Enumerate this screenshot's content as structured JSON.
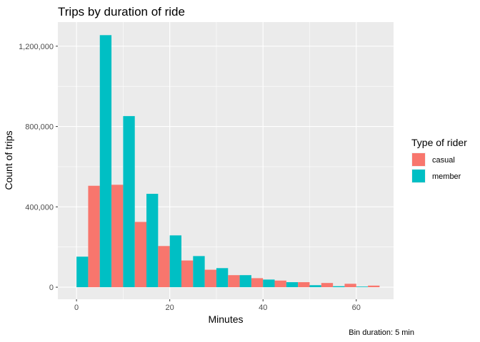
{
  "chart_data": {
    "type": "bar",
    "title": "Trips by duration of ride",
    "xlabel": "Minutes",
    "ylabel": "Count of trips",
    "caption": "Bin duration: 5 min",
    "legend_title": "Type of rider",
    "legend_position": "right",
    "grid": true,
    "xlim": [
      -4,
      68
    ],
    "ylim": [
      -60000,
      1320000
    ],
    "x_ticks": [
      0,
      20,
      40,
      60
    ],
    "x_tick_labels": [
      "0",
      "20",
      "40",
      "60"
    ],
    "y_ticks": [
      0,
      400000,
      800000,
      1200000
    ],
    "y_tick_labels": [
      "0",
      "400,000",
      "800,000",
      "1,200,000"
    ],
    "bin_width": 5,
    "x": [
      0,
      5,
      10,
      15,
      20,
      25,
      30,
      35,
      40,
      45,
      50,
      55,
      60,
      65
    ],
    "series": [
      {
        "name": "casual",
        "color": "#F8766D",
        "values": [
          0,
          505000,
          510000,
          325000,
          205000,
          133000,
          87000,
          60000,
          45000,
          33000,
          25000,
          21000,
          17000,
          8000
        ]
      },
      {
        "name": "member",
        "color": "#00BFC4",
        "values": [
          152000,
          1255000,
          852000,
          465000,
          258000,
          155000,
          95000,
          60000,
          38000,
          25000,
          10000,
          5000,
          3000,
          0
        ]
      }
    ]
  }
}
